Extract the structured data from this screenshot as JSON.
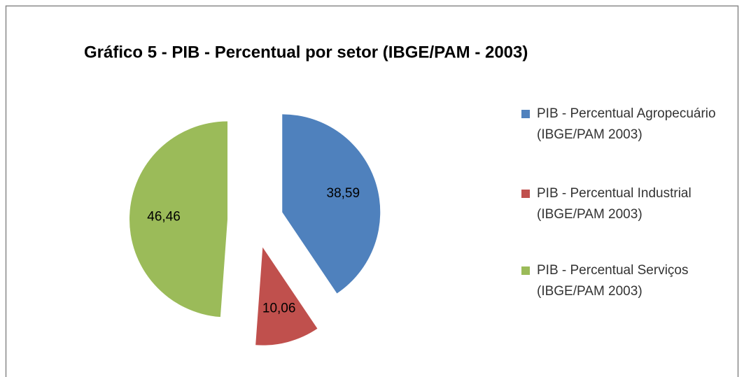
{
  "chart_data": {
    "type": "pie",
    "title": "Gráfico 5 - PIB - Percentual por setor (IBGE/PAM - 2003)",
    "series": [
      {
        "name": "PIB - Percentual Agropecuário (IBGE/PAM 2003)",
        "color": "#4f81bd"
      },
      {
        "name": "PIB - Percentual Industrial (IBGE/PAM 2003)",
        "color": "#c0504d"
      },
      {
        "name": "PIB - Percentual Serviços (IBGE/PAM 2003)",
        "color": "#9bbb59"
      }
    ],
    "values": [
      38.59,
      10.06,
      46.46
    ],
    "value_labels": [
      "38,59",
      "10,06",
      "46,46"
    ],
    "legend": "right"
  }
}
